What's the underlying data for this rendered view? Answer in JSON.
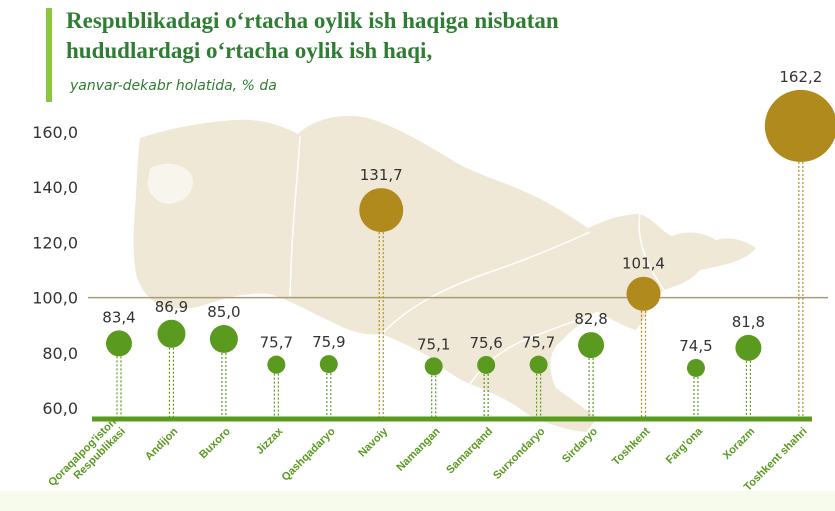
{
  "title_line1": "Respublikadagi o‘rtacha oylik ish haqiga nisbatan",
  "title_line2": "hududlardagi o‘rtacha oylik ish haqi,",
  "subtitle": "yanvar-dekabr holatida, % da",
  "colors": {
    "title": "#2e7d32",
    "title_bar": "#8cc63f",
    "below_100": "#5a9a1f",
    "above_100": "#b08a1c",
    "axis_baseline": "#5a9a1f",
    "reference_line": "#a89c78",
    "map": "#efe8d6"
  },
  "chart_data": {
    "type": "scatter",
    "title": "Respublikadagi o‘rtacha oylik ish haqiga nisbatan hududlardagi o‘rtacha oylik ish haqi,",
    "subtitle": "yanvar-dekabr holatida, % da",
    "categories": [
      "Qoraqalpog'iston Respublikasi",
      "Andijon",
      "Buxoro",
      "Jizzax",
      "Qashqadaryo",
      "Navoiy",
      "Namangan",
      "Samarqand",
      "Surxondaryo",
      "Sirdaryo",
      "Toshkent",
      "Farg'ona",
      "Xorazm",
      "Toshkent shahri"
    ],
    "values": [
      83.4,
      86.9,
      85.0,
      75.7,
      75.9,
      131.7,
      75.1,
      75.6,
      75.7,
      82.8,
      101.4,
      74.5,
      81.8,
      162.2
    ],
    "value_labels": [
      "83,4",
      "86,9",
      "85,0",
      "75,7",
      "75,9",
      "131,7",
      "75,1",
      "75,6",
      "75,7",
      "82,8",
      "101,4",
      "74,5",
      "81,8",
      "162,2"
    ],
    "y_ticks": [
      "60,0",
      "80,0",
      "100,0",
      "120,0",
      "140,0",
      "160,0"
    ],
    "y_tick_values": [
      60,
      80,
      100,
      120,
      140,
      160
    ],
    "ylim": [
      60,
      160
    ],
    "reference_line": 100,
    "grid": false
  }
}
